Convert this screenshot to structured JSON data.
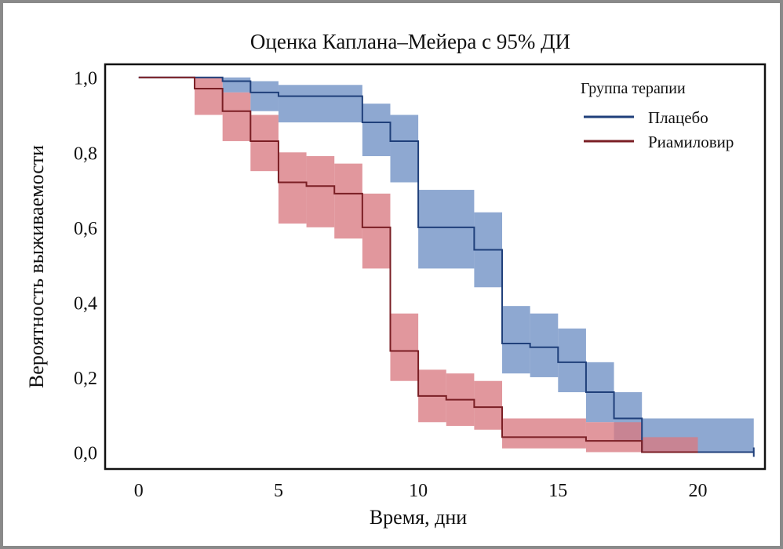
{
  "chart_data": {
    "type": "line",
    "subtype": "kaplan-meier-step",
    "title": "Оценка Каплана–Мейера с 95% ДИ",
    "xlabel": "Время, дни",
    "ylabel": "Вероятность выживаемости",
    "xlim": [
      -1.2,
      22.4
    ],
    "ylim": [
      -0.045,
      1.035
    ],
    "xticks": [
      0,
      5,
      10,
      15,
      20
    ],
    "xtick_labels": [
      "0",
      "5",
      "10",
      "15",
      "20"
    ],
    "yticks": [
      0.0,
      0.2,
      0.4,
      0.6,
      0.8,
      1.0
    ],
    "ytick_labels": [
      "0,0",
      "0,2",
      "0,4",
      "0,6",
      "0,8",
      "1,0"
    ],
    "grid": false,
    "legend": {
      "title": "Группа терапии",
      "placement": "top-right"
    },
    "series": [
      {
        "name": "Плацебо",
        "color": "#1f3f7a",
        "band_color": "#6e8fc4",
        "x": [
          0,
          3,
          4,
          5,
          8,
          9,
          10,
          12,
          13,
          14,
          15,
          16,
          17,
          18,
          22
        ],
        "y": [
          1.0,
          0.99,
          0.96,
          0.95,
          0.88,
          0.83,
          0.6,
          0.54,
          0.29,
          0.28,
          0.24,
          0.16,
          0.09,
          0.0,
          0.0
        ],
        "ci_lower": [
          1.0,
          0.96,
          0.91,
          0.88,
          0.79,
          0.72,
          0.49,
          0.44,
          0.21,
          0.2,
          0.16,
          0.08,
          0.03,
          0.0,
          0.0
        ],
        "ci_upper": [
          1.0,
          1.0,
          0.99,
          0.98,
          0.93,
          0.9,
          0.7,
          0.64,
          0.39,
          0.37,
          0.33,
          0.24,
          0.16,
          0.09,
          0.04
        ],
        "censored_end": 22
      },
      {
        "name": "Риамиловир",
        "color": "#7a1e24",
        "band_color": "#d97a82",
        "x": [
          0,
          2,
          3,
          4,
          5,
          6,
          7,
          8,
          9,
          10,
          11,
          12,
          13,
          16,
          18,
          20
        ],
        "y": [
          1.0,
          0.97,
          0.91,
          0.83,
          0.72,
          0.71,
          0.69,
          0.6,
          0.27,
          0.15,
          0.14,
          0.12,
          0.04,
          0.03,
          0.0,
          0.0
        ],
        "ci_lower": [
          1.0,
          0.9,
          0.83,
          0.75,
          0.61,
          0.6,
          0.57,
          0.49,
          0.19,
          0.08,
          0.07,
          0.06,
          0.01,
          0.0,
          0.0,
          0.0
        ],
        "ci_upper": [
          1.0,
          1.0,
          0.96,
          0.9,
          0.8,
          0.79,
          0.77,
          0.69,
          0.37,
          0.22,
          0.21,
          0.19,
          0.09,
          0.08,
          0.04,
          0.04
        ],
        "end": 20
      }
    ]
  }
}
